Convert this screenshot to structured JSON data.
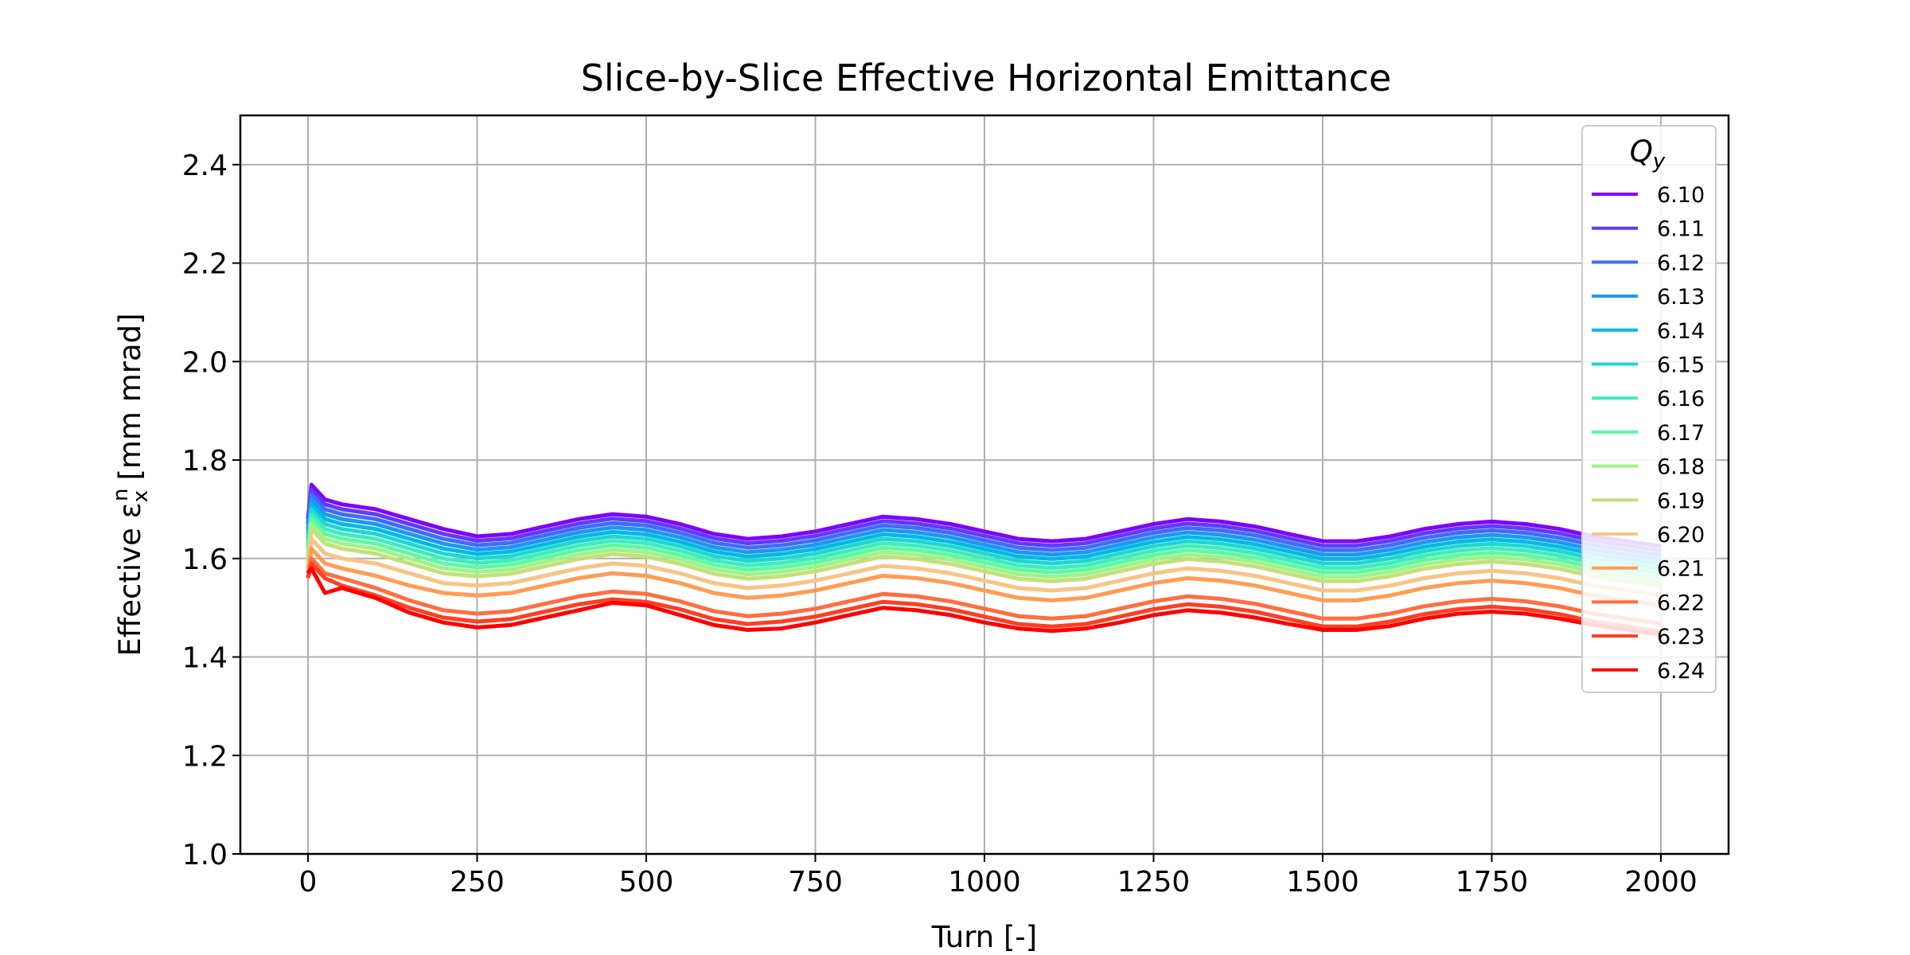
{
  "chart_data": {
    "type": "line",
    "title": "Slice-by-Slice Effective Horizontal Emittance",
    "xlabel": "Turn [-]",
    "ylabel": "Effective ε",
    "ylabel_sub": "x",
    "ylabel_sup": "n",
    "ylabel_unit": "[mm mrad]",
    "xlim": [
      -100,
      2100
    ],
    "ylim": [
      1.0,
      2.5
    ],
    "xticks": [
      0,
      250,
      500,
      750,
      1000,
      1250,
      1500,
      1750,
      2000
    ],
    "xtick_labels": [
      "0",
      "250",
      "500",
      "750",
      "1000",
      "1250",
      "1500",
      "1750",
      "2000"
    ],
    "yticks": [
      1.0,
      1.2,
      1.4,
      1.6,
      1.8,
      2.0,
      2.2,
      2.4
    ],
    "ytick_labels": [
      "1.0",
      "1.2",
      "1.4",
      "1.6",
      "1.8",
      "2.0",
      "2.2",
      "2.4"
    ],
    "grid": true,
    "legend_title": "Q",
    "legend_title_sub": "y",
    "legend_position": "top-right",
    "x": [
      0,
      5,
      25,
      50,
      100,
      150,
      200,
      250,
      300,
      350,
      400,
      450,
      500,
      550,
      600,
      650,
      700,
      750,
      800,
      850,
      900,
      950,
      1000,
      1050,
      1100,
      1150,
      1200,
      1250,
      1300,
      1350,
      1400,
      1450,
      1500,
      1550,
      1600,
      1650,
      1700,
      1750,
      1800,
      1850,
      1900,
      1950,
      2000
    ],
    "series": [
      {
        "name": "6.10",
        "color": "#7f00ff",
        "values": [
          1.68,
          1.75,
          1.72,
          1.71,
          1.7,
          1.68,
          1.66,
          1.645,
          1.65,
          1.665,
          1.68,
          1.69,
          1.685,
          1.67,
          1.65,
          1.64,
          1.645,
          1.655,
          1.67,
          1.685,
          1.68,
          1.67,
          1.655,
          1.64,
          1.635,
          1.64,
          1.655,
          1.67,
          1.68,
          1.675,
          1.665,
          1.65,
          1.635,
          1.635,
          1.645,
          1.66,
          1.67,
          1.675,
          1.67,
          1.66,
          1.645,
          1.635,
          1.625
        ]
      },
      {
        "name": "6.11",
        "color": "#5f3bff",
        "values": [
          1.67,
          1.74,
          1.71,
          1.7,
          1.69,
          1.67,
          1.65,
          1.636,
          1.641,
          1.656,
          1.671,
          1.681,
          1.676,
          1.661,
          1.641,
          1.631,
          1.636,
          1.646,
          1.661,
          1.676,
          1.671,
          1.661,
          1.646,
          1.631,
          1.626,
          1.631,
          1.646,
          1.661,
          1.671,
          1.666,
          1.656,
          1.641,
          1.626,
          1.626,
          1.636,
          1.651,
          1.661,
          1.666,
          1.661,
          1.651,
          1.636,
          1.626,
          1.616
        ]
      },
      {
        "name": "6.12",
        "color": "#3f6cfc",
        "values": [
          1.66,
          1.73,
          1.7,
          1.69,
          1.68,
          1.66,
          1.64,
          1.627,
          1.632,
          1.647,
          1.662,
          1.672,
          1.667,
          1.652,
          1.632,
          1.622,
          1.627,
          1.637,
          1.652,
          1.667,
          1.662,
          1.652,
          1.637,
          1.622,
          1.617,
          1.622,
          1.637,
          1.652,
          1.662,
          1.657,
          1.647,
          1.632,
          1.617,
          1.617,
          1.627,
          1.642,
          1.652,
          1.657,
          1.652,
          1.642,
          1.627,
          1.617,
          1.607
        ]
      },
      {
        "name": "6.13",
        "color": "#1f96f2",
        "values": [
          1.65,
          1.72,
          1.69,
          1.68,
          1.67,
          1.65,
          1.63,
          1.618,
          1.623,
          1.638,
          1.653,
          1.663,
          1.658,
          1.643,
          1.623,
          1.613,
          1.618,
          1.628,
          1.643,
          1.658,
          1.653,
          1.643,
          1.628,
          1.613,
          1.608,
          1.613,
          1.628,
          1.643,
          1.653,
          1.648,
          1.638,
          1.623,
          1.608,
          1.608,
          1.618,
          1.633,
          1.643,
          1.648,
          1.643,
          1.633,
          1.618,
          1.608,
          1.598
        ]
      },
      {
        "name": "6.14",
        "color": "#00bae4",
        "values": [
          1.64,
          1.71,
          1.68,
          1.67,
          1.66,
          1.64,
          1.62,
          1.609,
          1.614,
          1.629,
          1.644,
          1.654,
          1.649,
          1.634,
          1.614,
          1.604,
          1.609,
          1.619,
          1.634,
          1.649,
          1.644,
          1.634,
          1.619,
          1.604,
          1.599,
          1.604,
          1.619,
          1.634,
          1.644,
          1.639,
          1.629,
          1.614,
          1.599,
          1.599,
          1.609,
          1.624,
          1.634,
          1.639,
          1.634,
          1.624,
          1.609,
          1.599,
          1.589
        ]
      },
      {
        "name": "6.15",
        "color": "#20d6d2",
        "values": [
          1.63,
          1.7,
          1.67,
          1.66,
          1.65,
          1.63,
          1.61,
          1.6,
          1.605,
          1.62,
          1.635,
          1.645,
          1.64,
          1.625,
          1.605,
          1.595,
          1.6,
          1.61,
          1.625,
          1.64,
          1.635,
          1.625,
          1.61,
          1.595,
          1.59,
          1.595,
          1.61,
          1.625,
          1.635,
          1.63,
          1.62,
          1.605,
          1.59,
          1.59,
          1.6,
          1.615,
          1.625,
          1.63,
          1.625,
          1.615,
          1.6,
          1.59,
          1.58
        ]
      },
      {
        "name": "6.16",
        "color": "#40ecbd",
        "values": [
          1.62,
          1.69,
          1.66,
          1.65,
          1.64,
          1.62,
          1.6,
          1.591,
          1.596,
          1.611,
          1.626,
          1.636,
          1.631,
          1.616,
          1.596,
          1.586,
          1.591,
          1.601,
          1.616,
          1.631,
          1.626,
          1.616,
          1.601,
          1.586,
          1.581,
          1.586,
          1.601,
          1.616,
          1.626,
          1.621,
          1.611,
          1.596,
          1.581,
          1.581,
          1.591,
          1.606,
          1.616,
          1.621,
          1.616,
          1.606,
          1.591,
          1.581,
          1.571
        ]
      },
      {
        "name": "6.17",
        "color": "#60f8a5",
        "values": [
          1.61,
          1.68,
          1.65,
          1.64,
          1.63,
          1.61,
          1.59,
          1.582,
          1.587,
          1.602,
          1.617,
          1.627,
          1.622,
          1.607,
          1.587,
          1.577,
          1.582,
          1.592,
          1.607,
          1.622,
          1.617,
          1.607,
          1.592,
          1.577,
          1.572,
          1.577,
          1.592,
          1.607,
          1.617,
          1.612,
          1.602,
          1.587,
          1.572,
          1.572,
          1.582,
          1.597,
          1.607,
          1.612,
          1.607,
          1.597,
          1.582,
          1.572,
          1.562
        ]
      },
      {
        "name": "6.18",
        "color": "#9ff38a",
        "values": [
          1.6,
          1.67,
          1.64,
          1.63,
          1.62,
          1.6,
          1.58,
          1.573,
          1.578,
          1.593,
          1.608,
          1.618,
          1.613,
          1.598,
          1.578,
          1.568,
          1.573,
          1.583,
          1.598,
          1.613,
          1.608,
          1.598,
          1.583,
          1.568,
          1.563,
          1.568,
          1.583,
          1.598,
          1.608,
          1.603,
          1.593,
          1.578,
          1.563,
          1.563,
          1.573,
          1.588,
          1.598,
          1.603,
          1.598,
          1.588,
          1.573,
          1.563,
          1.553
        ]
      },
      {
        "name": "6.19",
        "color": "#c4e07a",
        "values": [
          1.59,
          1.66,
          1.63,
          1.62,
          1.61,
          1.59,
          1.57,
          1.564,
          1.569,
          1.584,
          1.599,
          1.609,
          1.604,
          1.589,
          1.569,
          1.559,
          1.564,
          1.574,
          1.589,
          1.604,
          1.599,
          1.589,
          1.574,
          1.559,
          1.554,
          1.559,
          1.574,
          1.589,
          1.599,
          1.594,
          1.584,
          1.569,
          1.554,
          1.554,
          1.564,
          1.579,
          1.589,
          1.594,
          1.589,
          1.579,
          1.564,
          1.554,
          1.544
        ]
      },
      {
        "name": "6.20",
        "color": "#f8c486",
        "values": [
          1.58,
          1.64,
          1.61,
          1.6,
          1.59,
          1.57,
          1.55,
          1.545,
          1.55,
          1.565,
          1.58,
          1.59,
          1.585,
          1.57,
          1.55,
          1.54,
          1.545,
          1.555,
          1.57,
          1.585,
          1.58,
          1.57,
          1.555,
          1.54,
          1.535,
          1.54,
          1.555,
          1.57,
          1.58,
          1.575,
          1.565,
          1.55,
          1.535,
          1.535,
          1.545,
          1.56,
          1.57,
          1.575,
          1.57,
          1.56,
          1.545,
          1.535,
          1.525
        ]
      },
      {
        "name": "6.21",
        "color": "#ff9c54",
        "values": [
          1.57,
          1.62,
          1.59,
          1.58,
          1.565,
          1.545,
          1.53,
          1.525,
          1.53,
          1.545,
          1.56,
          1.57,
          1.565,
          1.55,
          1.53,
          1.52,
          1.525,
          1.535,
          1.55,
          1.565,
          1.56,
          1.55,
          1.535,
          1.52,
          1.515,
          1.52,
          1.535,
          1.55,
          1.56,
          1.555,
          1.545,
          1.53,
          1.515,
          1.515,
          1.525,
          1.54,
          1.55,
          1.555,
          1.55,
          1.54,
          1.525,
          1.515,
          1.505
        ]
      },
      {
        "name": "6.22",
        "color": "#ff6e40",
        "values": [
          1.56,
          1.6,
          1.57,
          1.56,
          1.54,
          1.515,
          1.495,
          1.488,
          1.493,
          1.508,
          1.523,
          1.533,
          1.528,
          1.513,
          1.493,
          1.483,
          1.488,
          1.498,
          1.513,
          1.528,
          1.523,
          1.513,
          1.498,
          1.483,
          1.478,
          1.483,
          1.498,
          1.513,
          1.523,
          1.518,
          1.508,
          1.493,
          1.478,
          1.478,
          1.488,
          1.503,
          1.513,
          1.518,
          1.513,
          1.503,
          1.488,
          1.478,
          1.468
        ]
      },
      {
        "name": "6.23",
        "color": "#ff3e22",
        "values": [
          1.56,
          1.59,
          1.56,
          1.545,
          1.525,
          1.5,
          1.48,
          1.472,
          1.477,
          1.492,
          1.507,
          1.517,
          1.512,
          1.497,
          1.477,
          1.467,
          1.472,
          1.482,
          1.497,
          1.512,
          1.507,
          1.497,
          1.482,
          1.467,
          1.462,
          1.467,
          1.482,
          1.497,
          1.507,
          1.502,
          1.492,
          1.477,
          1.462,
          1.462,
          1.472,
          1.487,
          1.497,
          1.502,
          1.497,
          1.487,
          1.472,
          1.462,
          1.452
        ]
      },
      {
        "name": "6.24",
        "color": "#ff0000",
        "values": [
          1.57,
          1.58,
          1.53,
          1.54,
          1.52,
          1.49,
          1.47,
          1.46,
          1.465,
          1.48,
          1.495,
          1.51,
          1.505,
          1.485,
          1.465,
          1.455,
          1.458,
          1.47,
          1.485,
          1.5,
          1.495,
          1.485,
          1.47,
          1.458,
          1.453,
          1.458,
          1.47,
          1.485,
          1.495,
          1.49,
          1.48,
          1.467,
          1.455,
          1.455,
          1.463,
          1.478,
          1.488,
          1.492,
          1.488,
          1.478,
          1.465,
          1.455,
          1.445
        ]
      }
    ]
  }
}
